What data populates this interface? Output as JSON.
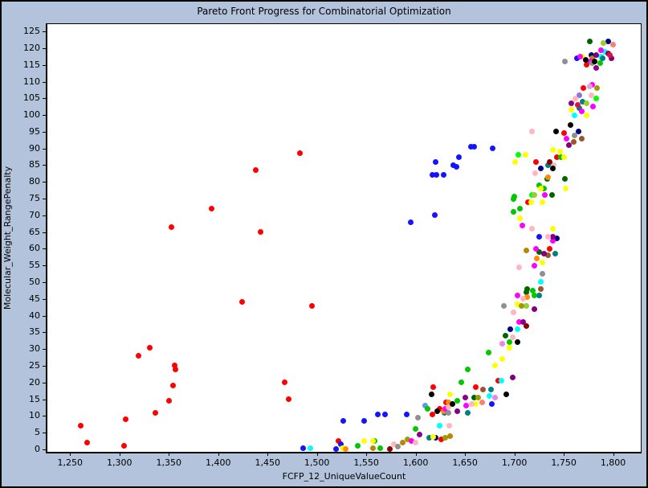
{
  "window": {
    "title": "Pareto Front Progress for Combinatorial Optimization"
  },
  "colors": {
    "background": "#b2c3db",
    "plot_background": "#ffffff",
    "axis": "#000000",
    "text": "#000000"
  },
  "chart_data": {
    "type": "scatter",
    "title": "Pareto Front Progress for Combinatorial Optimization",
    "xlabel": "FCFP_12_UniqueValueCount",
    "ylabel": "Molecular_Weight_RangePenalty",
    "xlim": [
      1227,
      1828
    ],
    "ylim": [
      -0.75,
      127.2
    ],
    "grid": false,
    "legend": "none",
    "marker_size_px": 7,
    "x_ticks": {
      "values": [
        1250,
        1300,
        1350,
        1400,
        1450,
        1500,
        1550,
        1600,
        1650,
        1700,
        1750,
        1800
      ],
      "labels": [
        "1,250",
        "1,300",
        "1,350",
        "1,400",
        "1,450",
        "1,500",
        "1,550",
        "1,600",
        "1,650",
        "1,700",
        "1,750",
        "1,800"
      ]
    },
    "y_ticks": {
      "values": [
        0,
        5,
        10,
        15,
        20,
        25,
        30,
        35,
        40,
        45,
        50,
        55,
        60,
        65,
        70,
        75,
        80,
        85,
        90,
        95,
        100,
        105,
        110,
        115,
        120,
        125
      ],
      "labels": [
        "0",
        "5",
        "10",
        "15",
        "20",
        "25",
        "30",
        "35",
        "40",
        "45",
        "50",
        "55",
        "60",
        "65",
        "70",
        "75",
        "80",
        "85",
        "90",
        "95",
        "100",
        "105",
        "110",
        "115",
        "120",
        "125"
      ]
    },
    "palette": {
      "re": "#ff0000",
      "dr": "#8b0000",
      "cr": "#dc143c",
      "sa": "#fa8072",
      "or": "#ff8c00",
      "br": "#a0522d",
      "db": "#b8860b",
      "ol": "#9c9c00",
      "ye": "#ffff00",
      "yg": "#9acd32",
      "li": "#00ff00",
      "gr": "#00c800",
      "dg": "#006400",
      "te": "#008080",
      "cy": "#00ffff",
      "cf": "#6495ed",
      "bl": "#1414ff",
      "nv": "#000080",
      "pu": "#800080",
      "dm": "#8b008b",
      "ma": "#ff00ff",
      "mp": "#9370db",
      "vi": "#ee82ee",
      "pl": "#dda0dd",
      "pi": "#ffb6c1",
      "gy": "#909090",
      "bk": "#000000"
    },
    "points": [
      [
        1483,
        88.5,
        "re"
      ],
      [
        1438,
        83.5,
        "re"
      ],
      [
        1393,
        72,
        "re"
      ],
      [
        1353,
        66.5,
        "re"
      ],
      [
        1443,
        65,
        "re"
      ],
      [
        1424,
        44,
        "re"
      ],
      [
        1495,
        43,
        "re"
      ],
      [
        1331,
        30.5,
        "re"
      ],
      [
        1319,
        28,
        "re"
      ],
      [
        1356,
        25,
        "re"
      ],
      [
        1357,
        24,
        "re"
      ],
      [
        1354,
        19,
        "re"
      ],
      [
        1350,
        14.5,
        "re"
      ],
      [
        1336,
        11,
        "re"
      ],
      [
        1306,
        9,
        "re"
      ],
      [
        1261,
        7,
        "re"
      ],
      [
        1267,
        2,
        "re"
      ],
      [
        1305,
        1,
        "re"
      ],
      [
        1467,
        20,
        "re"
      ],
      [
        1471,
        15,
        "re"
      ],
      [
        1522,
        2.5,
        "re"
      ],
      [
        1617,
        10.5,
        "re"
      ],
      [
        1618,
        18.5,
        "re"
      ],
      [
        1624,
        12,
        "re"
      ],
      [
        1626,
        3,
        "re"
      ],
      [
        1631,
        14,
        "re"
      ],
      [
        1661,
        18.5,
        "re"
      ],
      [
        1684,
        20.5,
        "re"
      ],
      [
        1714,
        74,
        "re"
      ],
      [
        1722,
        86,
        "re"
      ],
      [
        1736,
        60,
        "re"
      ],
      [
        1743,
        87.5,
        "re"
      ],
      [
        1750,
        94.5,
        "re"
      ],
      [
        1770,
        108,
        "re"
      ],
      [
        1773,
        115,
        "re"
      ],
      [
        1656,
        90.5,
        "bl"
      ],
      [
        1659,
        90.5,
        "bl"
      ],
      [
        1678,
        90,
        "bl"
      ],
      [
        1644,
        87.5,
        "bl"
      ],
      [
        1638,
        85,
        "bl"
      ],
      [
        1641,
        84.5,
        "bl"
      ],
      [
        1620,
        86,
        "bl"
      ],
      [
        1617,
        82,
        "bl"
      ],
      [
        1621,
        82,
        "bl"
      ],
      [
        1628,
        82,
        "bl"
      ],
      [
        1619,
        70,
        "bl"
      ],
      [
        1595,
        68,
        "bl"
      ],
      [
        1527,
        8.5,
        "bl"
      ],
      [
        1548,
        8.5,
        "bl"
      ],
      [
        1562,
        10.5,
        "bl"
      ],
      [
        1569,
        10.5,
        "bl"
      ],
      [
        1591,
        10.5,
        "bl"
      ],
      [
        1486,
        0.3,
        "bl"
      ],
      [
        1519,
        0.2,
        "bl"
      ],
      [
        1524,
        1.5,
        "bl"
      ],
      [
        1677,
        13.5,
        "bl"
      ],
      [
        1725,
        63.5,
        "bl"
      ],
      [
        1763,
        117,
        "bl"
      ],
      [
        1493,
        0.3,
        "cy"
      ],
      [
        1624,
        7,
        "cy"
      ],
      [
        1675,
        16,
        "cy"
      ],
      [
        1687,
        20.5,
        "cy"
      ],
      [
        1727,
        50,
        "cy"
      ],
      [
        1703,
        36,
        "cy"
      ],
      [
        1761,
        100,
        "cy"
      ],
      [
        1788,
        117.5,
        "cy"
      ],
      [
        1792,
        119,
        "cy"
      ],
      [
        1610,
        13,
        "cf"
      ],
      [
        1629,
        11,
        "te"
      ],
      [
        1653,
        11,
        "te"
      ],
      [
        1676,
        18,
        "te"
      ],
      [
        1614,
        3.5,
        "te"
      ],
      [
        1725,
        46,
        "te"
      ],
      [
        1741,
        58.5,
        "te"
      ],
      [
        1734,
        85,
        "te"
      ],
      [
        1766,
        102,
        "te"
      ],
      [
        1769,
        104,
        "te"
      ],
      [
        1789,
        117,
        "te"
      ],
      [
        1620,
        3.5,
        "nv"
      ],
      [
        1696,
        36,
        "nv"
      ],
      [
        1743,
        63,
        "nv"
      ],
      [
        1727,
        84,
        "nv"
      ],
      [
        1765,
        95,
        "nv"
      ],
      [
        1778,
        118,
        "nv"
      ],
      [
        1795,
        122,
        "nv"
      ],
      [
        1541,
        1,
        "gr"
      ],
      [
        1558,
        2.5,
        "gr"
      ],
      [
        1564,
        0.3,
        "gr"
      ],
      [
        1600,
        6,
        "gr"
      ],
      [
        1612,
        12,
        "gr"
      ],
      [
        1642,
        14.5,
        "gr"
      ],
      [
        1646,
        20,
        "gr"
      ],
      [
        1653,
        24,
        "gr"
      ],
      [
        1674,
        29,
        "gr"
      ],
      [
        1695,
        32,
        "gr"
      ],
      [
        1720,
        46,
        "gr"
      ],
      [
        1719,
        47.5,
        "gr"
      ],
      [
        1699,
        71,
        "gr"
      ],
      [
        1706,
        72,
        "gr"
      ],
      [
        1699,
        75,
        "gr"
      ],
      [
        1700,
        75.5,
        "gr"
      ],
      [
        1725,
        79,
        "gr"
      ],
      [
        1730,
        78,
        "gr"
      ],
      [
        1747,
        87.5,
        "gr"
      ],
      [
        1787,
        115.5,
        "gr"
      ],
      [
        1718,
        76,
        "li"
      ],
      [
        1704,
        88,
        "li"
      ],
      [
        1783,
        105,
        "li"
      ],
      [
        1659,
        15.5,
        "dg"
      ],
      [
        1691,
        34,
        "dg"
      ],
      [
        1712,
        47,
        "dg"
      ],
      [
        1713,
        48,
        "dg"
      ],
      [
        1725,
        59,
        "dg"
      ],
      [
        1738,
        76,
        "dg"
      ],
      [
        1733,
        81,
        "dg"
      ],
      [
        1751,
        81,
        "dg"
      ],
      [
        1776,
        122,
        "dg"
      ],
      [
        1526,
        0.3,
        "ye"
      ],
      [
        1548,
        2.5,
        "ye"
      ],
      [
        1557,
        2.5,
        "ye"
      ],
      [
        1618,
        3.7,
        "ye"
      ],
      [
        1635,
        16.5,
        "ye"
      ],
      [
        1661,
        13.5,
        "ye"
      ],
      [
        1680,
        25,
        "ye"
      ],
      [
        1688,
        27,
        "ye"
      ],
      [
        1695,
        30.5,
        "ye"
      ],
      [
        1703,
        43.5,
        "ye"
      ],
      [
        1728,
        56,
        "ye"
      ],
      [
        1739,
        66,
        "ye"
      ],
      [
        1706,
        69,
        "ye"
      ],
      [
        1717,
        74,
        "ye"
      ],
      [
        1728,
        74,
        "ye"
      ],
      [
        1727,
        78,
        "ye"
      ],
      [
        1752,
        78,
        "ye"
      ],
      [
        1701,
        86,
        "ye"
      ],
      [
        1711,
        88,
        "ye"
      ],
      [
        1739,
        89.5,
        "ye"
      ],
      [
        1746,
        89,
        "ye"
      ],
      [
        1750.5,
        87.5,
        "ye"
      ],
      [
        1758,
        101.5,
        "ye"
      ],
      [
        1773,
        100,
        "ye"
      ],
      [
        1769,
        117.5,
        "ye"
      ],
      [
        1712,
        43,
        "yg"
      ],
      [
        1720,
        76,
        "yg"
      ],
      [
        1773,
        103.5,
        "yg"
      ],
      [
        1790,
        121.5,
        "yg"
      ],
      [
        1592,
        3,
        "ol"
      ],
      [
        1630,
        3.5,
        "ol"
      ],
      [
        1663,
        15.5,
        "ol"
      ],
      [
        1707,
        43,
        "ol"
      ],
      [
        1784,
        108,
        "ol"
      ],
      [
        1557,
        0.3,
        "db"
      ],
      [
        1587,
        2,
        "db"
      ],
      [
        1635,
        4,
        "db"
      ],
      [
        1712,
        59.5,
        "db"
      ],
      [
        1779,
        117,
        "db"
      ],
      [
        1529,
        0.2,
        "or"
      ],
      [
        1628,
        11.5,
        "or"
      ],
      [
        1633,
        14,
        "or"
      ],
      [
        1713,
        45.5,
        "or"
      ],
      [
        1723,
        57,
        "or"
      ],
      [
        1734,
        81.5,
        "or"
      ],
      [
        1667,
        14,
        "sa"
      ],
      [
        1800,
        121,
        "sa"
      ],
      [
        1668,
        18,
        "br"
      ],
      [
        1727,
        48,
        "br"
      ],
      [
        1734,
        58,
        "br"
      ],
      [
        1760,
        92,
        "br"
      ],
      [
        1768,
        93,
        "br"
      ],
      [
        1596,
        2.5,
        "ma"
      ],
      [
        1630,
        12,
        "ma"
      ],
      [
        1651,
        13,
        "ma"
      ],
      [
        1703,
        46,
        "ma"
      ],
      [
        1705,
        38,
        "ma"
      ],
      [
        1720,
        55,
        "ma"
      ],
      [
        1722,
        60,
        "ma"
      ],
      [
        1739,
        62.5,
        "ma"
      ],
      [
        1731,
        76,
        "ma"
      ],
      [
        1708,
        67,
        "ma"
      ],
      [
        1753,
        93,
        "ma"
      ],
      [
        1768,
        101,
        "ma"
      ],
      [
        1780,
        102.5,
        "ma"
      ],
      [
        1779,
        109,
        "ma"
      ],
      [
        1777,
        116,
        "ma"
      ],
      [
        1767,
        117.5,
        "ma"
      ],
      [
        1788,
        119.5,
        "ma"
      ],
      [
        1604,
        4.5,
        "dm"
      ],
      [
        1650,
        15.5,
        "dm"
      ],
      [
        1709,
        38,
        "dm"
      ],
      [
        1758,
        103.5,
        "dm"
      ],
      [
        1783,
        114,
        "dm"
      ],
      [
        1642,
        11.5,
        "pu"
      ],
      [
        1698,
        21.5,
        "pu"
      ],
      [
        1720,
        42,
        "pu"
      ],
      [
        1730,
        58.5,
        "pu"
      ],
      [
        1739,
        63.5,
        "pu"
      ],
      [
        1755,
        91,
        "pu"
      ],
      [
        1783,
        118,
        "pu"
      ],
      [
        1798,
        117,
        "pu"
      ],
      [
        1795,
        118.5,
        "pu"
      ],
      [
        1766,
        106,
        "mp"
      ],
      [
        1680,
        15.5,
        "vi"
      ],
      [
        1688,
        31.5,
        "vi"
      ],
      [
        1776,
        108.5,
        "pl"
      ],
      [
        1578,
        1.5,
        "pi"
      ],
      [
        1600,
        2,
        "pi"
      ],
      [
        1634,
        7,
        "pi"
      ],
      [
        1657,
        13.5,
        "pi"
      ],
      [
        1633,
        12.7,
        "pi"
      ],
      [
        1699,
        41,
        "pi"
      ],
      [
        1698,
        33.5,
        "pi"
      ],
      [
        1709,
        45,
        "pi"
      ],
      [
        1705,
        54.5,
        "pi"
      ],
      [
        1718,
        66,
        "pi"
      ],
      [
        1734,
        63.5,
        "pi"
      ],
      [
        1721,
        82.5,
        "pi"
      ],
      [
        1740,
        85,
        "pi"
      ],
      [
        1718,
        95,
        "pi"
      ],
      [
        1762,
        105,
        "pi"
      ],
      [
        1778,
        106,
        "pi"
      ],
      [
        1582,
        0.7,
        "gy"
      ],
      [
        1602,
        9.5,
        "gy"
      ],
      [
        1633,
        11,
        "gy"
      ],
      [
        1689,
        43,
        "gy"
      ],
      [
        1728,
        52.5,
        "gy"
      ],
      [
        1761,
        94,
        "gy"
      ],
      [
        1751,
        116,
        "gy"
      ],
      [
        1779,
        115.5,
        "gy"
      ],
      [
        1616,
        16.5,
        "bk"
      ],
      [
        1622,
        11.5,
        "bk"
      ],
      [
        1637,
        13.5,
        "bk"
      ],
      [
        1692,
        16.5,
        "bk"
      ],
      [
        1703,
        32,
        "bk"
      ],
      [
        1739,
        84,
        "bk"
      ],
      [
        1742,
        95,
        "bk"
      ],
      [
        1757,
        97,
        "bk"
      ],
      [
        1772,
        116.5,
        "bk"
      ],
      [
        1781,
        116,
        "bk"
      ],
      [
        1574,
        0.2,
        "dr"
      ],
      [
        1712,
        37,
        "dr"
      ],
      [
        1736,
        86,
        "dr"
      ],
      [
        1764,
        103,
        "cr"
      ],
      [
        1797,
        118,
        "cr"
      ]
    ]
  }
}
